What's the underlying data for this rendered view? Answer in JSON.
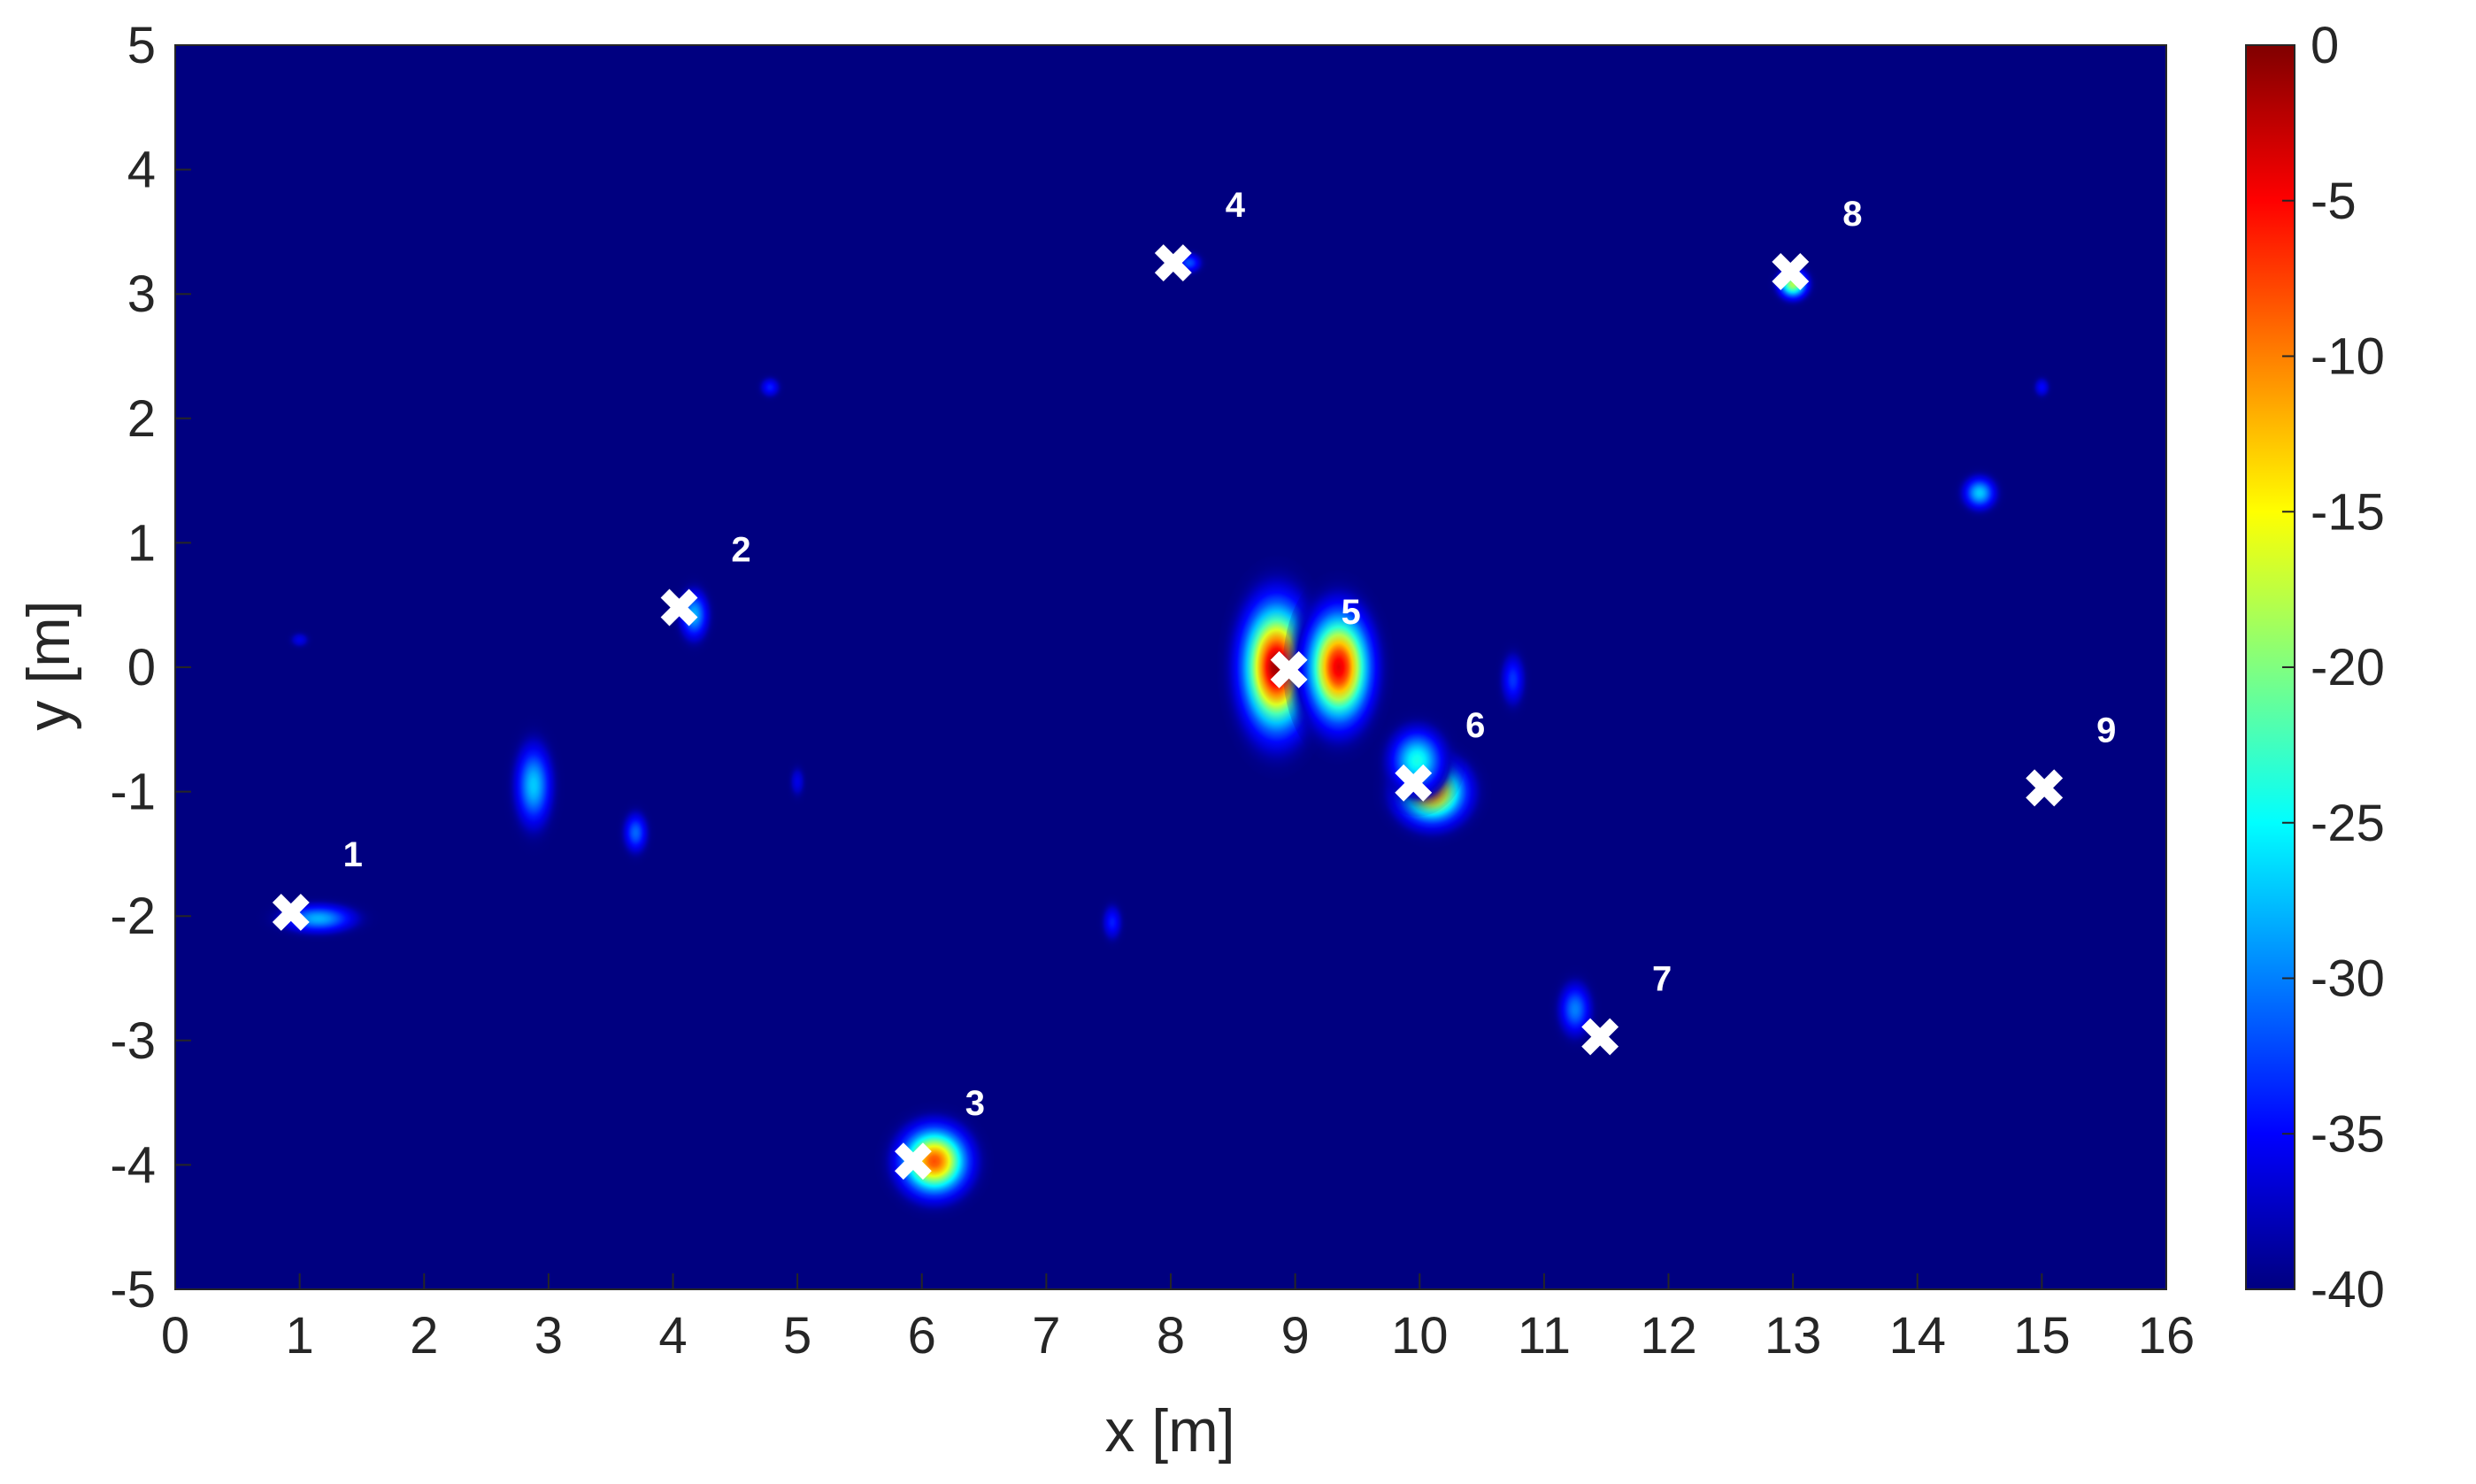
{
  "chart_data": {
    "type": "heatmap",
    "title": "",
    "xlabel": "x [m]",
    "ylabel": "y [m]",
    "xlim": [
      0,
      16
    ],
    "ylim": [
      -5,
      5
    ],
    "x_ticks": [
      "0",
      "1",
      "2",
      "3",
      "4",
      "5",
      "6",
      "7",
      "8",
      "9",
      "10",
      "11",
      "12",
      "13",
      "14",
      "15",
      "16"
    ],
    "y_ticks": [
      "5",
      "4",
      "3",
      "2",
      "1",
      "0",
      "-1",
      "-2",
      "-3",
      "-4",
      "-5"
    ],
    "colorbar": {
      "colormap": "jet",
      "range": [
        -40,
        0
      ],
      "ticks": [
        "0",
        "-5",
        "-10",
        "-15",
        "-20",
        "-25",
        "-30",
        "-35",
        "-40"
      ]
    },
    "background_level": -40,
    "markers": [
      {
        "label": "1",
        "x": 0.93,
        "y": -1.97
      },
      {
        "label": "2",
        "x": 4.05,
        "y": 0.48
      },
      {
        "label": "3",
        "x": 5.93,
        "y": -3.97
      },
      {
        "label": "4",
        "x": 8.02,
        "y": 3.25
      },
      {
        "label": "5",
        "x": 8.95,
        "y": -0.02
      },
      {
        "label": "6",
        "x": 9.95,
        "y": -0.93
      },
      {
        "label": "7",
        "x": 11.45,
        "y": -2.97
      },
      {
        "label": "8",
        "x": 12.98,
        "y": 3.18
      },
      {
        "label": "9",
        "x": 15.02,
        "y": -0.97
      }
    ],
    "hotspots": [
      {
        "x": 8.85,
        "y": 0.0,
        "sx": 0.16,
        "sy": 0.3,
        "peak": -1
      },
      {
        "x": 9.35,
        "y": 0.0,
        "sx": 0.15,
        "sy": 0.26,
        "peak": -4
      },
      {
        "x": 6.1,
        "y": -3.97,
        "sx": 0.16,
        "sy": 0.16,
        "peak": -8
      },
      {
        "x": 10.1,
        "y": -1.0,
        "sx": 0.16,
        "sy": 0.15,
        "peak": -10
      },
      {
        "x": 9.98,
        "y": -0.75,
        "sx": 0.13,
        "sy": 0.15,
        "peak": -24
      },
      {
        "x": 13.0,
        "y": 3.08,
        "sx": 0.07,
        "sy": 0.07,
        "peak": -18
      },
      {
        "x": 1.15,
        "y": -2.02,
        "sx": 0.18,
        "sy": 0.07,
        "peak": -28
      },
      {
        "x": 4.17,
        "y": 0.42,
        "sx": 0.07,
        "sy": 0.12,
        "peak": -28
      },
      {
        "x": 2.88,
        "y": -0.95,
        "sx": 0.09,
        "sy": 0.2,
        "peak": -27
      },
      {
        "x": 3.7,
        "y": -1.33,
        "sx": 0.06,
        "sy": 0.1,
        "peak": -31
      },
      {
        "x": 14.5,
        "y": 1.4,
        "sx": 0.08,
        "sy": 0.08,
        "peak": -27
      },
      {
        "x": 11.25,
        "y": -2.75,
        "sx": 0.08,
        "sy": 0.13,
        "peak": -30
      },
      {
        "x": 10.75,
        "y": -0.1,
        "sx": 0.06,
        "sy": 0.13,
        "peak": -33
      },
      {
        "x": 7.53,
        "y": -2.05,
        "sx": 0.05,
        "sy": 0.09,
        "peak": -34
      },
      {
        "x": 8.15,
        "y": 3.25,
        "sx": 0.06,
        "sy": 0.05,
        "peak": -32
      },
      {
        "x": 4.78,
        "y": 2.25,
        "sx": 0.05,
        "sy": 0.05,
        "peak": -34
      },
      {
        "x": 15.0,
        "y": 2.25,
        "sx": 0.04,
        "sy": 0.05,
        "peak": -35
      },
      {
        "x": 5.0,
        "y": -0.92,
        "sx": 0.04,
        "sy": 0.08,
        "peak": -36
      },
      {
        "x": 1.0,
        "y": 0.22,
        "sx": 0.05,
        "sy": 0.04,
        "peak": -36
      }
    ]
  }
}
